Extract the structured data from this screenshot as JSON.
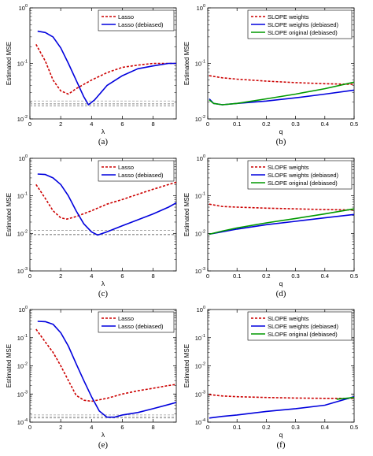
{
  "colors": {
    "red": "#cc0000",
    "blue": "#0000dd",
    "green": "#009900",
    "gray": "#999999"
  },
  "chart_data": [
    {
      "type": "line",
      "label": "(a)",
      "xlabel": "λ",
      "ylabel": "Estimated MSE",
      "xlim": [
        0,
        9.5
      ],
      "ylim_log10": [
        -2,
        0
      ],
      "yscale": "log",
      "xticks": [
        "0",
        "2",
        "4",
        "6",
        "8"
      ],
      "xtick_values": [
        0,
        2,
        4,
        6,
        8
      ],
      "yticks": [
        "10^-2",
        "10^-1",
        "10^0"
      ],
      "ytick_exponents": [
        -2,
        -1,
        0
      ],
      "legend": "top-right",
      "series": [
        {
          "name": "Lasso",
          "style": "dashed",
          "color": "#cc0000",
          "x": [
            0.4,
            1,
            1.5,
            2,
            2.5,
            3,
            4,
            5,
            6,
            7,
            8,
            9,
            9.5
          ],
          "y": [
            0.22,
            0.11,
            0.05,
            0.032,
            0.028,
            0.035,
            0.05,
            0.068,
            0.085,
            0.093,
            0.1,
            0.1,
            0.1
          ]
        },
        {
          "name": "Lasso (debiased)",
          "style": "solid",
          "color": "#0000dd",
          "x": [
            0.5,
            1,
            1.5,
            2,
            2.5,
            3,
            3.5,
            3.8,
            4.2,
            5,
            6,
            7,
            8,
            9,
            9.5
          ],
          "y": [
            0.38,
            0.36,
            0.3,
            0.19,
            0.1,
            0.05,
            0.025,
            0.018,
            0.022,
            0.04,
            0.06,
            0.08,
            0.09,
            0.1,
            0.1
          ]
        }
      ],
      "reference_lines": [
        0.021,
        0.019,
        0.018,
        0.017
      ]
    },
    {
      "type": "line",
      "label": "(b)",
      "xlabel": "q",
      "ylabel": "Estimated MSE",
      "xlim": [
        0,
        0.5
      ],
      "ylim_log10": [
        -2,
        0
      ],
      "yscale": "log",
      "xticks": [
        "0",
        "0.1",
        "0.2",
        "0.3",
        "0.4",
        "0.5"
      ],
      "xtick_values": [
        0,
        0.1,
        0.2,
        0.3,
        0.4,
        0.5
      ],
      "yticks": [
        "10^-2",
        "10^-1",
        "10^0"
      ],
      "ytick_exponents": [
        -2,
        -1,
        0
      ],
      "legend": "top-right",
      "series": [
        {
          "name": "SLOPE weights",
          "style": "dashed",
          "color": "#cc0000",
          "x": [
            0.005,
            0.05,
            0.1,
            0.2,
            0.3,
            0.4,
            0.5
          ],
          "y": [
            0.06,
            0.055,
            0.052,
            0.048,
            0.045,
            0.043,
            0.042
          ]
        },
        {
          "name": "SLOPE weights (debiased)",
          "style": "solid",
          "color": "#0000dd",
          "x": [
            0.005,
            0.02,
            0.05,
            0.1,
            0.2,
            0.3,
            0.4,
            0.5
          ],
          "y": [
            0.023,
            0.019,
            0.018,
            0.019,
            0.021,
            0.024,
            0.028,
            0.033
          ]
        },
        {
          "name": "SLOPE original (debiased)",
          "style": "solid",
          "color": "#009900",
          "x": [
            0.005,
            0.02,
            0.05,
            0.1,
            0.2,
            0.3,
            0.4,
            0.5
          ],
          "y": [
            0.022,
            0.019,
            0.018,
            0.019,
            0.023,
            0.028,
            0.035,
            0.046
          ]
        }
      ],
      "reference_lines": []
    },
    {
      "type": "line",
      "label": "(c)",
      "xlabel": "λ",
      "ylabel": "Estimated MSE",
      "xlim": [
        0,
        9.5
      ],
      "ylim_log10": [
        -3,
        0
      ],
      "yscale": "log",
      "xticks": [
        "0",
        "2",
        "4",
        "6",
        "8"
      ],
      "xtick_values": [
        0,
        2,
        4,
        6,
        8
      ],
      "yticks": [
        "10^-3",
        "10^-2",
        "10^-1",
        "10^0"
      ],
      "ytick_exponents": [
        -3,
        -2,
        -1,
        0
      ],
      "legend": "top-right",
      "series": [
        {
          "name": "Lasso",
          "style": "dashed",
          "color": "#cc0000",
          "x": [
            0.4,
            1,
            1.5,
            2,
            2.4,
            3,
            4,
            5,
            6,
            7,
            8,
            9,
            9.5
          ],
          "y": [
            0.2,
            0.085,
            0.04,
            0.026,
            0.024,
            0.028,
            0.04,
            0.06,
            0.08,
            0.11,
            0.15,
            0.2,
            0.23
          ]
        },
        {
          "name": "Lasso (debiased)",
          "style": "solid",
          "color": "#0000dd",
          "x": [
            0.5,
            1,
            1.5,
            2,
            2.5,
            3,
            3.5,
            4,
            4.4,
            5,
            6,
            7,
            8,
            9,
            9.5
          ],
          "y": [
            0.38,
            0.37,
            0.3,
            0.2,
            0.1,
            0.04,
            0.018,
            0.011,
            0.009,
            0.011,
            0.016,
            0.023,
            0.033,
            0.05,
            0.065
          ]
        }
      ],
      "reference_lines": [
        0.012,
        0.0095,
        0.0092
      ]
    },
    {
      "type": "line",
      "label": "(d)",
      "xlabel": "q",
      "ylabel": "Estimated MSE",
      "xlim": [
        0,
        0.5
      ],
      "ylim_log10": [
        -3,
        0
      ],
      "yscale": "log",
      "xticks": [
        "0",
        "0.1",
        "0.2",
        "0.3",
        "0.4",
        "0.5"
      ],
      "xtick_values": [
        0,
        0.1,
        0.2,
        0.3,
        0.4,
        0.5
      ],
      "yticks": [
        "10^-3",
        "10^-2",
        "10^-1",
        "10^0"
      ],
      "ytick_exponents": [
        -3,
        -2,
        -1,
        0
      ],
      "legend": "top-right",
      "series": [
        {
          "name": "SLOPE weights",
          "style": "dashed",
          "color": "#cc0000",
          "x": [
            0.005,
            0.05,
            0.1,
            0.2,
            0.3,
            0.4,
            0.5
          ],
          "y": [
            0.06,
            0.052,
            0.05,
            0.047,
            0.045,
            0.043,
            0.042
          ]
        },
        {
          "name": "SLOPE weights (debiased)",
          "style": "solid",
          "color": "#0000dd",
          "x": [
            0.005,
            0.05,
            0.1,
            0.2,
            0.3,
            0.4,
            0.5
          ],
          "y": [
            0.0095,
            0.011,
            0.013,
            0.017,
            0.021,
            0.026,
            0.032
          ]
        },
        {
          "name": "SLOPE original (debiased)",
          "style": "solid",
          "color": "#009900",
          "x": [
            0.005,
            0.05,
            0.1,
            0.2,
            0.3,
            0.4,
            0.5
          ],
          "y": [
            0.0095,
            0.0115,
            0.014,
            0.019,
            0.025,
            0.033,
            0.045
          ]
        }
      ],
      "reference_lines": []
    },
    {
      "type": "line",
      "label": "(e)",
      "xlabel": "λ",
      "ylabel": "Estimated MSE",
      "xlim": [
        0,
        9.5
      ],
      "ylim_log10": [
        -4,
        0
      ],
      "yscale": "log",
      "xticks": [
        "0",
        "2",
        "4",
        "6",
        "8"
      ],
      "xtick_values": [
        0,
        2,
        4,
        6,
        8
      ],
      "yticks": [
        "10^-4",
        "10^-3",
        "10^-2",
        "10^-1",
        "10^0"
      ],
      "ytick_exponents": [
        -4,
        -3,
        -2,
        -1,
        0
      ],
      "legend": "top-right",
      "series": [
        {
          "name": "Lasso",
          "style": "dashed",
          "color": "#cc0000",
          "x": [
            0.4,
            1,
            1.5,
            2,
            2.5,
            3,
            3.5,
            4,
            5,
            6,
            7,
            8,
            9,
            9.5
          ],
          "y": [
            0.2,
            0.07,
            0.03,
            0.01,
            0.003,
            0.0009,
            0.0006,
            0.00055,
            0.0007,
            0.001,
            0.0013,
            0.0016,
            0.002,
            0.0022
          ]
        },
        {
          "name": "Lasso (debiased)",
          "style": "solid",
          "color": "#0000dd",
          "x": [
            0.5,
            1,
            1.5,
            2,
            2.5,
            3,
            3.5,
            4,
            4.5,
            5,
            5.5,
            6,
            7,
            8,
            9,
            9.5
          ],
          "y": [
            0.38,
            0.37,
            0.3,
            0.15,
            0.05,
            0.012,
            0.003,
            0.0008,
            0.00025,
            0.00015,
            0.00015,
            0.00018,
            0.00022,
            0.0003,
            0.00042,
            0.0005
          ]
        }
      ],
      "reference_lines": [
        0.00018,
        0.00015,
        0.00014
      ]
    },
    {
      "type": "line",
      "label": "(f)",
      "xlabel": "q",
      "ylabel": "Estimated MSE",
      "xlim": [
        0,
        0.5
      ],
      "ylim_log10": [
        -4,
        0
      ],
      "yscale": "log",
      "xticks": [
        "0",
        "0.1",
        "0.2",
        "0.3",
        "0.4",
        "0.5"
      ],
      "xtick_values": [
        0,
        0.1,
        0.2,
        0.3,
        0.4,
        0.5
      ],
      "yticks": [
        "10^-4",
        "10^-3",
        "10^-2",
        "10^-1",
        "10^0"
      ],
      "ytick_exponents": [
        -4,
        -3,
        -2,
        -1,
        0
      ],
      "legend": "top-right",
      "series": [
        {
          "name": "SLOPE weights",
          "style": "dashed",
          "color": "#cc0000",
          "x": [
            0.005,
            0.05,
            0.1,
            0.2,
            0.3,
            0.4,
            0.5
          ],
          "y": [
            0.00095,
            0.00085,
            0.0008,
            0.00075,
            0.00072,
            0.0007,
            0.0007
          ]
        },
        {
          "name": "SLOPE weights (debiased)",
          "style": "solid",
          "color": "#0000dd",
          "x": [
            0.005,
            0.05,
            0.1,
            0.2,
            0.3,
            0.4,
            0.5
          ],
          "y": [
            0.00014,
            0.00016,
            0.00018,
            0.00024,
            0.0003,
            0.0004,
            0.0008
          ]
        },
        {
          "name": "SLOPE original (debiased)",
          "style": "solid",
          "color": "#009900",
          "x": [
            0.44,
            0.47,
            0.5
          ],
          "y": [
            0.00065,
            0.0007,
            0.00075
          ]
        }
      ],
      "reference_lines": []
    }
  ]
}
